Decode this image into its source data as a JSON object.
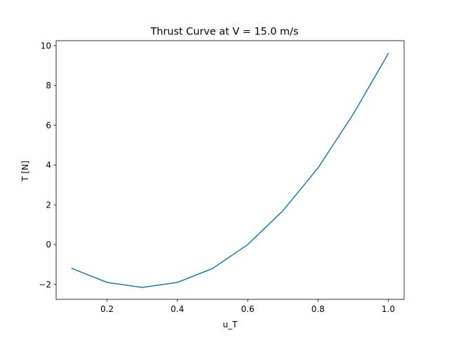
{
  "chart_data": {
    "type": "line",
    "title": "Thrust Curve at V = 15.0 m/s",
    "xlabel": "u_T",
    "ylabel": "T [N]",
    "xlim": [
      0.055,
      1.045
    ],
    "ylim": [
      -2.75,
      10.25
    ],
    "xticks": [
      0.2,
      0.4,
      0.6,
      0.8,
      1.0
    ],
    "xtick_labels": [
      "0.2",
      "0.4",
      "0.6",
      "0.8",
      "1.0"
    ],
    "yticks": [
      -2,
      0,
      2,
      4,
      6,
      8,
      10
    ],
    "ytick_labels": [
      "−2",
      "0",
      "2",
      "4",
      "6",
      "8",
      "10"
    ],
    "grid": false,
    "series": [
      {
        "color": "#1f77b4",
        "x": [
          0.1,
          0.2,
          0.3,
          0.4,
          0.5,
          0.6,
          0.7,
          0.8,
          0.9,
          1.0
        ],
        "y": [
          -1.2,
          -1.9,
          -2.15,
          -1.9,
          -1.2,
          0.0,
          1.7,
          3.85,
          6.55,
          9.6
        ]
      }
    ]
  }
}
